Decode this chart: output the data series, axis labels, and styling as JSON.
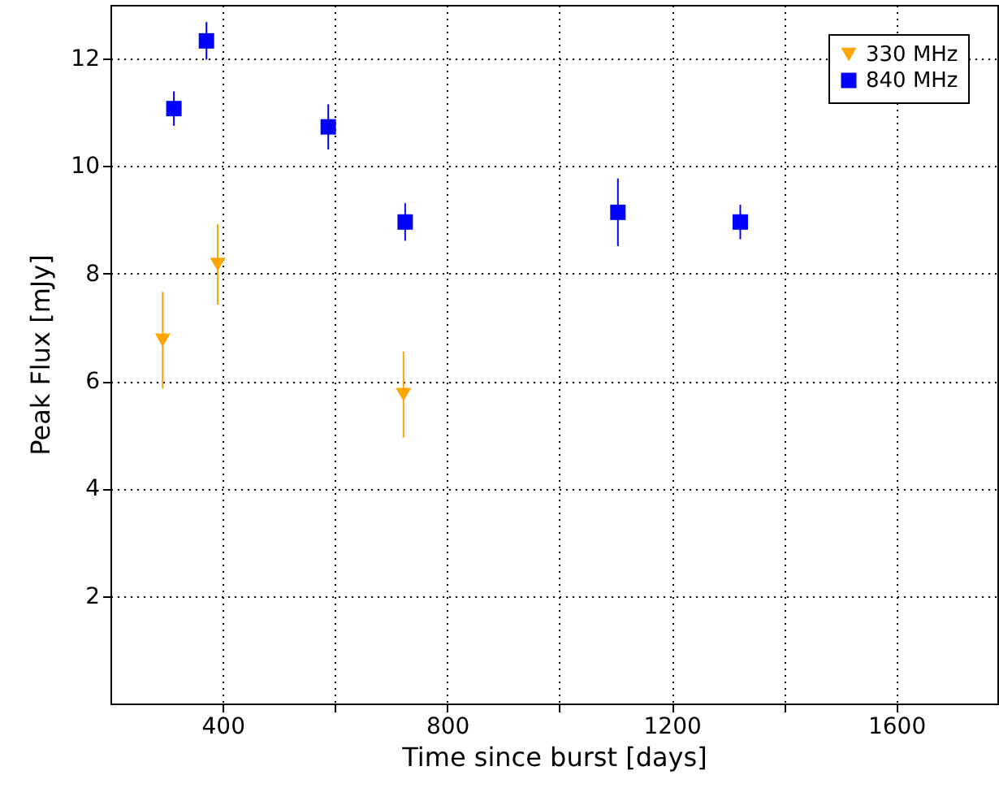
{
  "chart_data": {
    "type": "scatter",
    "xlabel": "Time since burst [days]",
    "ylabel": "Peak Flux [mJy]",
    "xlim": [
      200,
      1780
    ],
    "xticks": [
      400,
      {
        "value": 600,
        "label": null
      },
      800,
      {
        "value": 1000,
        "label": null
      },
      1200,
      {
        "value": 1400,
        "label": null
      },
      1600
    ],
    "ylim": [
      0,
      13
    ],
    "yticks": [
      2,
      4,
      6,
      8,
      10,
      12
    ],
    "grid": true,
    "legend": "top right",
    "series": [
      {
        "name": "330 MHz",
        "color": "#ffa500",
        "marker": "triangle",
        "x": [
          293,
          391,
          722
        ],
        "values": [
          6.76,
          8.17,
          5.75
        ],
        "errors": [
          0.9,
          0.75,
          0.8
        ]
      },
      {
        "name": "840 MHz",
        "color": "#0000ff",
        "marker": "square",
        "x": [
          313,
          371,
          588,
          725,
          1104,
          1322
        ],
        "values": [
          11.07,
          12.33,
          10.73,
          8.96,
          9.14,
          8.96
        ],
        "errors": [
          0.32,
          0.35,
          0.42,
          0.35,
          0.63,
          0.32
        ]
      }
    ]
  }
}
